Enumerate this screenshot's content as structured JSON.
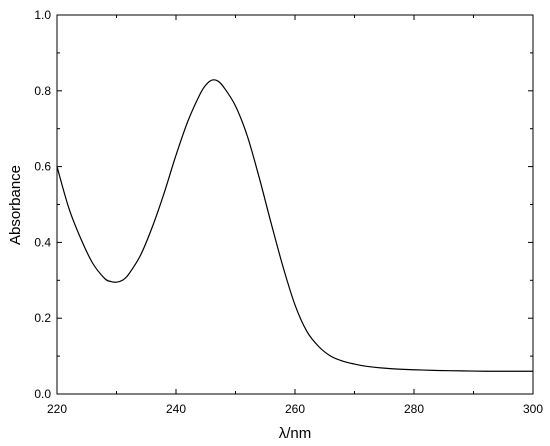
{
  "chart_data": {
    "type": "line",
    "title": "",
    "xlabel": "λ/nm",
    "ylabel": "Absorbance",
    "xlim": [
      220,
      300
    ],
    "ylim": [
      0.0,
      1.0
    ],
    "x_ticks": [
      "220",
      "240",
      "260",
      "280",
      "300"
    ],
    "y_ticks": [
      "0.0",
      "0.2",
      "0.4",
      "0.6",
      "0.8",
      "1.0"
    ],
    "grid": false,
    "legend": "none",
    "line_color": "#000000",
    "series": [
      {
        "x": [
          220,
          222,
          224,
          226,
          228,
          229,
          230,
          231,
          232,
          234,
          236,
          238,
          240,
          242,
          244,
          245,
          246,
          247,
          248,
          250,
          252,
          254,
          256,
          258,
          260,
          262,
          264,
          266,
          268,
          270,
          272,
          276,
          280,
          284,
          288,
          292,
          296,
          300
        ],
        "y": [
          0.6,
          0.49,
          0.41,
          0.345,
          0.305,
          0.297,
          0.295,
          0.3,
          0.315,
          0.365,
          0.44,
          0.53,
          0.63,
          0.72,
          0.79,
          0.815,
          0.828,
          0.826,
          0.81,
          0.76,
          0.68,
          0.57,
          0.45,
          0.335,
          0.235,
          0.165,
          0.125,
          0.1,
          0.087,
          0.079,
          0.073,
          0.067,
          0.064,
          0.062,
          0.061,
          0.06,
          0.06,
          0.06
        ]
      }
    ]
  }
}
